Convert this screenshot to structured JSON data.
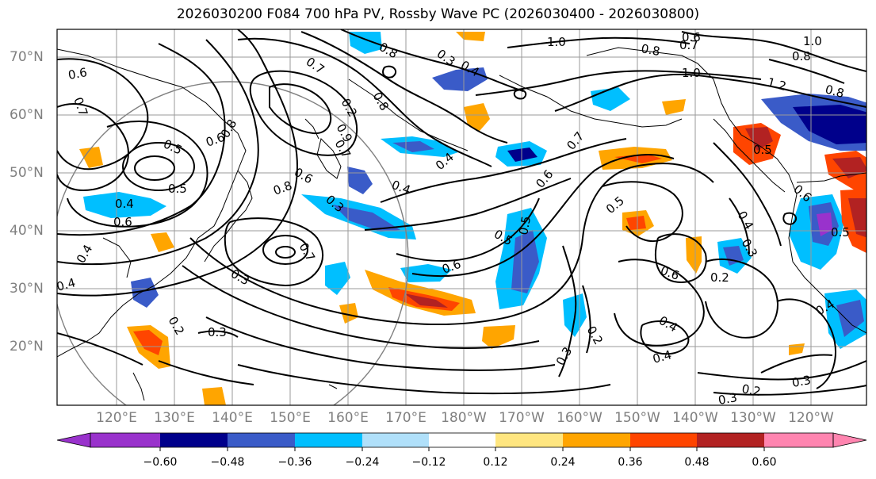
{
  "title": "2026030200 F084 700 hPa PV, Rossby Wave PC (2026030400 - 2026030800)",
  "lat_labels": [
    "70°N",
    "60°N",
    "50°N",
    "40°N",
    "30°N",
    "20°N"
  ],
  "lon_labels": [
    "120°E",
    "130°E",
    "140°E",
    "150°E",
    "160°E",
    "170°E",
    "180°W",
    "170°W",
    "160°W",
    "150°W",
    "140°W",
    "130°W",
    "120°W"
  ],
  "colorbar": {
    "colors": [
      "#9932CC",
      "#00008B",
      "#3A5BC8",
      "#00BFFF",
      "#B0E0FA",
      "#FFFFFF",
      "#FFE680",
      "#FFA500",
      "#FF4500",
      "#B22222",
      "#FF85B0"
    ],
    "tick_labels": [
      "−0.60",
      "−0.48",
      "−0.36",
      "−0.24",
      "−0.12",
      "0.12",
      "0.24",
      "0.36",
      "0.48",
      "0.60"
    ]
  },
  "contour_labels": [
    "0.6",
    "0.7",
    "0.7",
    "0.8",
    "0.3",
    "0.4",
    "0.4",
    "0.5",
    "0.8",
    "0.8",
    "0.6",
    "0.6",
    "0.9",
    "0.3",
    "0.6",
    "0.5",
    "0.7",
    "0.3",
    "0.4",
    "0.2",
    "0.3",
    "0.5",
    "0.6",
    "1.0",
    "0.8",
    "0.7",
    "0.6",
    "1.0",
    "1.0",
    "0.8",
    "1.2",
    "0.4",
    "0.8",
    "0.5",
    "0.6",
    "0.4",
    "0.3",
    "0.5",
    "0.2",
    "0.7",
    "0.5",
    "0.4",
    "0.3",
    "0.6",
    "0.2",
    "0.4",
    "0.4",
    "0.3",
    "0.2",
    "0.3",
    "0.4",
    "0.5",
    "0.4",
    "0.6",
    "0.7",
    "0.8",
    "0.2"
  ]
}
